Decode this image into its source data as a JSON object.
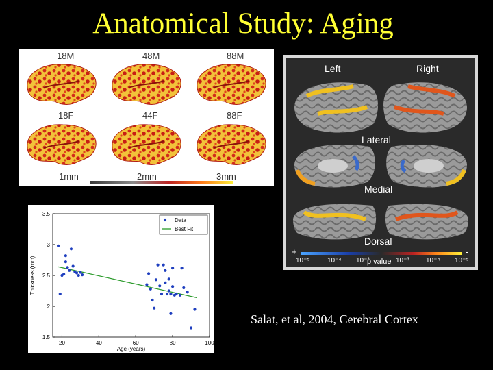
{
  "slide": {
    "title": "Anatomical Study: Aging",
    "citation": "Salat, et al, 2004, Cerebral Cortex"
  },
  "thickness_panel": {
    "labels": [
      "18M",
      "48M",
      "88M",
      "18F",
      "44F",
      "88F"
    ],
    "colorbar_ticks": [
      "1mm",
      "2mm",
      "3mm"
    ]
  },
  "pvalue_panel": {
    "left_label": "Left",
    "right_label": "Right",
    "views": [
      "Lateral",
      "Medial",
      "Dorsal"
    ],
    "sign_plus": "+",
    "sign_minus": "-",
    "ticks": [
      "10⁻⁵",
      "10⁻⁴",
      "10⁻³",
      "10⁻³",
      "10⁻⁴",
      "10⁻⁵"
    ],
    "axis_label": "p value"
  },
  "chart_data": {
    "type": "scatter",
    "xlabel": "Age (years)",
    "ylabel": "Thickness (mm)",
    "xlim": [
      15,
      100
    ],
    "ylim": [
      1.5,
      3.5
    ],
    "xticks": [
      20,
      40,
      60,
      80,
      100
    ],
    "yticks": [
      1.5,
      2,
      2.5,
      3,
      3.5
    ],
    "legend": {
      "position": "top-right",
      "entries": [
        "Data",
        "Best Fit"
      ]
    },
    "colors": {
      "data": "#1f3fbf",
      "fit": "#2a9a2a"
    },
    "series": [
      {
        "name": "Data",
        "points": [
          [
            18,
            2.98
          ],
          [
            19,
            2.2
          ],
          [
            20,
            2.5
          ],
          [
            21,
            2.52
          ],
          [
            22,
            2.72
          ],
          [
            22,
            2.82
          ],
          [
            23,
            2.63
          ],
          [
            24,
            2.58
          ],
          [
            25,
            2.93
          ],
          [
            26,
            2.65
          ],
          [
            27,
            2.56
          ],
          [
            28,
            2.54
          ],
          [
            29,
            2.5
          ],
          [
            30,
            2.55
          ],
          [
            31,
            2.51
          ],
          [
            66,
            2.35
          ],
          [
            67,
            2.53
          ],
          [
            68,
            2.28
          ],
          [
            69,
            2.1
          ],
          [
            70,
            1.97
          ],
          [
            71,
            2.43
          ],
          [
            72,
            2.67
          ],
          [
            73,
            2.33
          ],
          [
            74,
            2.2
          ],
          [
            75,
            2.67
          ],
          [
            76,
            2.38
          ],
          [
            77,
            2.2
          ],
          [
            78,
            2.44
          ],
          [
            78,
            2.25
          ],
          [
            79,
            2.2
          ],
          [
            80,
            2.62
          ],
          [
            80,
            2.32
          ],
          [
            81,
            2.18
          ],
          [
            82,
            2.2
          ],
          [
            84,
            2.18
          ],
          [
            85,
            2.62
          ],
          [
            86,
            2.3
          ],
          [
            88,
            2.23
          ],
          [
            90,
            1.65
          ],
          [
            92,
            1.95
          ],
          [
            76,
            2.58
          ],
          [
            79,
            1.88
          ]
        ]
      },
      {
        "name": "Best Fit",
        "line": [
          [
            18,
            2.64
          ],
          [
            93,
            2.14
          ]
        ]
      }
    ]
  }
}
